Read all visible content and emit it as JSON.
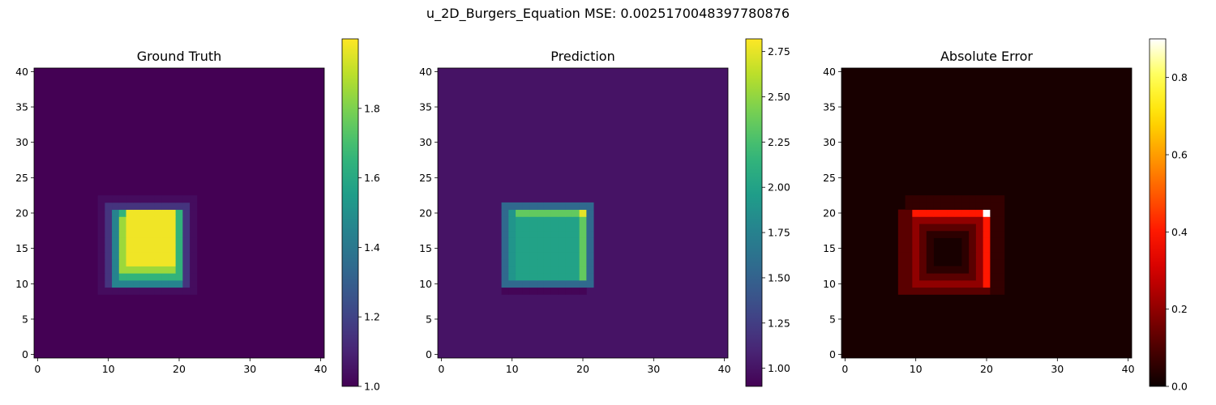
{
  "figure": {
    "suptitle": "u_2D_Burgers_Equation MSE: 0.0025170048397780876"
  },
  "chart_data": [
    {
      "type": "heatmap",
      "title": "Ground Truth",
      "colormap": "viridis",
      "grid_size": 41,
      "xlim": [
        0,
        40
      ],
      "ylim": [
        0,
        40
      ],
      "x_ticks": [
        "0",
        "10",
        "20",
        "30",
        "40"
      ],
      "y_ticks": [
        "0",
        "5",
        "10",
        "15",
        "20",
        "25",
        "30",
        "35",
        "40"
      ],
      "vmin": 1.0,
      "vmax": 2.0,
      "colorbar_ticks": [
        {
          "value": 1.0,
          "label": "1.0"
        },
        {
          "value": 1.2,
          "label": "1.2"
        },
        {
          "value": 1.4,
          "label": "1.4"
        },
        {
          "value": 1.6,
          "label": "1.6"
        },
        {
          "value": 1.8,
          "label": "1.8"
        }
      ],
      "background_value": 1.0,
      "regions": [
        {
          "x": [
            9,
            22
          ],
          "y": [
            9,
            22
          ],
          "value": 1.03
        },
        {
          "x": [
            10,
            21
          ],
          "y": [
            10,
            21
          ],
          "value": 1.15
        },
        {
          "x": [
            11,
            20
          ],
          "y": [
            10,
            20
          ],
          "value": 1.45
        },
        {
          "x": [
            12,
            20
          ],
          "y": [
            11,
            20
          ],
          "value": 1.65
        },
        {
          "x": [
            12,
            19
          ],
          "y": [
            12,
            19
          ],
          "value": 1.85
        },
        {
          "x": [
            13,
            19
          ],
          "y": [
            13,
            20
          ],
          "value": 1.98
        }
      ]
    },
    {
      "type": "heatmap",
      "title": "Prediction",
      "colormap": "viridis",
      "grid_size": 41,
      "xlim": [
        0,
        40
      ],
      "ylim": [
        0,
        40
      ],
      "x_ticks": [
        "0",
        "10",
        "20",
        "30",
        "40"
      ],
      "y_ticks": [
        "0",
        "5",
        "10",
        "15",
        "20",
        "25",
        "30",
        "35",
        "40"
      ],
      "vmin": 0.9,
      "vmax": 2.82,
      "colorbar_ticks": [
        {
          "value": 1.0,
          "label": "1.00"
        },
        {
          "value": 1.25,
          "label": "1.25"
        },
        {
          "value": 1.5,
          "label": "1.50"
        },
        {
          "value": 1.75,
          "label": "1.75"
        },
        {
          "value": 2.0,
          "label": "2.00"
        },
        {
          "value": 2.25,
          "label": "2.25"
        },
        {
          "value": 2.5,
          "label": "2.50"
        },
        {
          "value": 2.75,
          "label": "2.75"
        }
      ],
      "background_value": 1.0,
      "regions": [
        {
          "x": [
            9,
            20
          ],
          "y": [
            9,
            9
          ],
          "value": 0.92
        },
        {
          "x": [
            9,
            9
          ],
          "y": [
            10,
            21
          ],
          "value": 0.95
        },
        {
          "x": [
            9,
            21
          ],
          "y": [
            10,
            21
          ],
          "value": 1.55
        },
        {
          "x": [
            10,
            20
          ],
          "y": [
            11,
            20
          ],
          "value": 1.9
        },
        {
          "x": [
            11,
            19
          ],
          "y": [
            11,
            19
          ],
          "value": 2.0
        },
        {
          "x": [
            11,
            19
          ],
          "y": [
            20,
            20
          ],
          "value": 2.35
        },
        {
          "x": [
            20,
            20
          ],
          "y": [
            11,
            19
          ],
          "value": 2.35
        },
        {
          "x": [
            20,
            20
          ],
          "y": [
            20,
            20
          ],
          "value": 2.75
        }
      ]
    },
    {
      "type": "heatmap",
      "title": "Absolute Error",
      "colormap": "hot",
      "grid_size": 41,
      "xlim": [
        0,
        40
      ],
      "ylim": [
        0,
        40
      ],
      "x_ticks": [
        "0",
        "10",
        "20",
        "30",
        "40"
      ],
      "y_ticks": [
        "0",
        "5",
        "10",
        "15",
        "20",
        "25",
        "30",
        "35",
        "40"
      ],
      "vmin": 0.0,
      "vmax": 0.9,
      "colorbar_ticks": [
        {
          "value": 0.0,
          "label": "0.0"
        },
        {
          "value": 0.2,
          "label": "0.2"
        },
        {
          "value": 0.4,
          "label": "0.4"
        },
        {
          "value": 0.6,
          "label": "0.6"
        },
        {
          "value": 0.8,
          "label": "0.8"
        }
      ],
      "background_value": 0.02,
      "regions": [
        {
          "x": [
            9,
            22
          ],
          "y": [
            9,
            22
          ],
          "value": 0.06
        },
        {
          "x": [
            8,
            20
          ],
          "y": [
            9,
            20
          ],
          "value": 0.12
        },
        {
          "x": [
            10,
            19
          ],
          "y": [
            10,
            19
          ],
          "value": 0.2
        },
        {
          "x": [
            11,
            18
          ],
          "y": [
            11,
            18
          ],
          "value": 0.12
        },
        {
          "x": [
            12,
            17
          ],
          "y": [
            12,
            17
          ],
          "value": 0.05
        },
        {
          "x": [
            13,
            16
          ],
          "y": [
            13,
            16
          ],
          "value": 0.02
        },
        {
          "x": [
            10,
            19
          ],
          "y": [
            20,
            20
          ],
          "value": 0.4
        },
        {
          "x": [
            20,
            20
          ],
          "y": [
            10,
            19
          ],
          "value": 0.4
        },
        {
          "x": [
            20,
            20
          ],
          "y": [
            20,
            20
          ],
          "value": 0.9
        }
      ]
    }
  ]
}
